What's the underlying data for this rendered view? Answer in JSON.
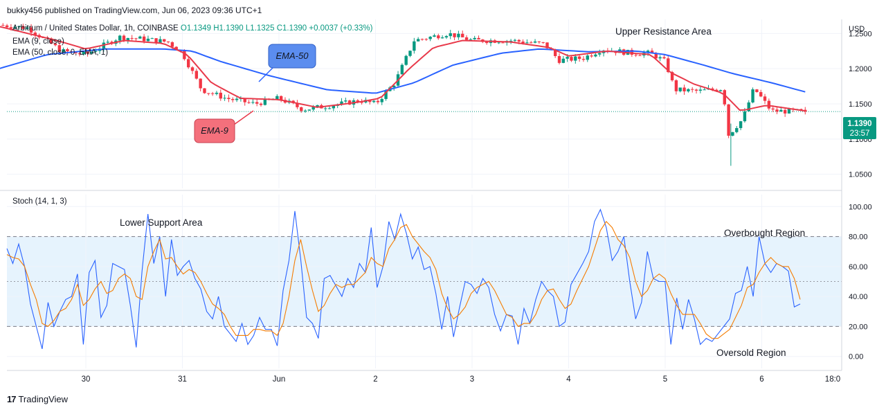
{
  "header": {
    "publisher": "bukky456 published on TradingView.com, Jun 06, 2023 09:36 UTC+1"
  },
  "legend": {
    "symbol": "Arbitrum / United States Dollar, 1h, COINBASE",
    "open": "O1.1349",
    "high": "H1.1390",
    "low": "L1.1325",
    "close": "C1.1390",
    "change": "+0.0037 (+0.33%)",
    "ema9": "EMA (9, close)",
    "ema50": "EMA (50, close, 0, EMA, 1)"
  },
  "stoch_title": "Stoch (14, 1, 3)",
  "annotations": {
    "upper_resistance": "Upper Resistance Area",
    "lower_support": "Lower Support Area",
    "overbought": "Overbought Region",
    "oversold": "Oversold Region",
    "ema50_callout": "EMA-50",
    "ema9_callout": "EMA-9"
  },
  "price_axis": {
    "currency": "USD",
    "ticks": [
      "1.2500",
      "1.2000",
      "1.1500",
      "1.1000",
      "1.0500"
    ],
    "last_price": "1.1390",
    "countdown": "23:57"
  },
  "stoch_axis": {
    "ticks": [
      "100.00",
      "80.00",
      "60.00",
      "40.00",
      "20.00",
      "0.00"
    ]
  },
  "time_axis": {
    "ticks": [
      "30",
      "31",
      "Jun",
      "2",
      "3",
      "4",
      "5",
      "6",
      "18:0"
    ]
  },
  "footer": {
    "brand": "TradingView"
  },
  "colors": {
    "up": "#089981",
    "down": "#f23645",
    "ema9": "#e8394a",
    "ema50": "#2962ff",
    "k_line": "#2962ff",
    "d_line": "#f57c00",
    "band": "#e3f2fd",
    "badge": "#089981",
    "callout_ema50": "#5b8def",
    "callout_ema9": "#f4707c"
  },
  "chart_data": [
    {
      "type": "candlestick",
      "title": "Arbitrum / United States Dollar, 1h, COINBASE",
      "ylabel": "USD",
      "ylim": [
        1.03,
        1.27
      ],
      "x": [
        "30",
        "31",
        "Jun",
        "2",
        "3",
        "4",
        "5",
        "6"
      ],
      "last_close": 1.139,
      "price_path": [
        {
          "t": -0.9,
          "p": 1.262
        },
        {
          "t": -0.6,
          "p": 1.258
        },
        {
          "t": -0.25,
          "p": 1.225
        },
        {
          "t": 0.0,
          "p": 1.22
        },
        {
          "t": 0.35,
          "p": 1.245
        },
        {
          "t": 0.6,
          "p": 1.242
        },
        {
          "t": 0.85,
          "p": 1.238
        },
        {
          "t": 1.0,
          "p": 1.222
        },
        {
          "t": 1.2,
          "p": 1.17
        },
        {
          "t": 1.45,
          "p": 1.158
        },
        {
          "t": 1.75,
          "p": 1.15
        },
        {
          "t": 2.0,
          "p": 1.158
        },
        {
          "t": 2.25,
          "p": 1.142
        },
        {
          "t": 2.55,
          "p": 1.148
        },
        {
          "t": 2.85,
          "p": 1.155
        },
        {
          "t": 3.0,
          "p": 1.15
        },
        {
          "t": 3.2,
          "p": 1.18
        },
        {
          "t": 3.4,
          "p": 1.24
        },
        {
          "t": 3.75,
          "p": 1.25
        },
        {
          "t": 4.0,
          "p": 1.24
        },
        {
          "t": 4.4,
          "p": 1.24
        },
        {
          "t": 4.75,
          "p": 1.235
        },
        {
          "t": 4.9,
          "p": 1.212
        },
        {
          "t": 5.15,
          "p": 1.215
        },
        {
          "t": 5.35,
          "p": 1.228
        },
        {
          "t": 5.65,
          "p": 1.222
        },
        {
          "t": 5.85,
          "p": 1.222
        },
        {
          "t": 6.0,
          "p": 1.21
        },
        {
          "t": 6.1,
          "p": 1.17
        },
        {
          "t": 6.35,
          "p": 1.168
        },
        {
          "t": 6.6,
          "p": 1.172
        },
        {
          "t": 6.65,
          "p": 1.105
        },
        {
          "t": 6.8,
          "p": 1.128
        },
        {
          "t": 6.92,
          "p": 1.172
        },
        {
          "t": 7.1,
          "p": 1.14
        },
        {
          "t": 7.45,
          "p": 1.139
        }
      ],
      "ema9_path": [
        {
          "t": -0.9,
          "p": 1.26
        },
        {
          "t": -0.3,
          "p": 1.24
        },
        {
          "t": 0.0,
          "p": 1.228
        },
        {
          "t": 0.4,
          "p": 1.24
        },
        {
          "t": 0.8,
          "p": 1.236
        },
        {
          "t": 1.05,
          "p": 1.22
        },
        {
          "t": 1.3,
          "p": 1.18
        },
        {
          "t": 1.6,
          "p": 1.158
        },
        {
          "t": 2.0,
          "p": 1.156
        },
        {
          "t": 2.4,
          "p": 1.145
        },
        {
          "t": 2.8,
          "p": 1.152
        },
        {
          "t": 3.05,
          "p": 1.158
        },
        {
          "t": 3.35,
          "p": 1.2
        },
        {
          "t": 3.6,
          "p": 1.23
        },
        {
          "t": 3.9,
          "p": 1.24
        },
        {
          "t": 4.4,
          "p": 1.238
        },
        {
          "t": 4.8,
          "p": 1.23
        },
        {
          "t": 5.0,
          "p": 1.218
        },
        {
          "t": 5.4,
          "p": 1.225
        },
        {
          "t": 5.85,
          "p": 1.22
        },
        {
          "t": 6.05,
          "p": 1.195
        },
        {
          "t": 6.3,
          "p": 1.178
        },
        {
          "t": 6.6,
          "p": 1.165
        },
        {
          "t": 6.78,
          "p": 1.14
        },
        {
          "t": 7.05,
          "p": 1.148
        },
        {
          "t": 7.45,
          "p": 1.14
        }
      ],
      "ema50_path": [
        {
          "t": -0.9,
          "p": 1.2
        },
        {
          "t": -0.4,
          "p": 1.22
        },
        {
          "t": 0.2,
          "p": 1.228
        },
        {
          "t": 0.8,
          "p": 1.228
        },
        {
          "t": 1.1,
          "p": 1.225
        },
        {
          "t": 1.4,
          "p": 1.21
        },
        {
          "t": 1.9,
          "p": 1.19
        },
        {
          "t": 2.5,
          "p": 1.17
        },
        {
          "t": 3.0,
          "p": 1.165
        },
        {
          "t": 3.4,
          "p": 1.18
        },
        {
          "t": 3.8,
          "p": 1.205
        },
        {
          "t": 4.3,
          "p": 1.222
        },
        {
          "t": 4.7,
          "p": 1.228
        },
        {
          "t": 5.2,
          "p": 1.224
        },
        {
          "t": 5.7,
          "p": 1.225
        },
        {
          "t": 6.0,
          "p": 1.22
        },
        {
          "t": 6.4,
          "p": 1.205
        },
        {
          "t": 6.7,
          "p": 1.193
        },
        {
          "t": 7.1,
          "p": 1.18
        },
        {
          "t": 7.45,
          "p": 1.167
        }
      ]
    },
    {
      "type": "line",
      "title": "Stoch (14, 1, 3)",
      "ylim": [
        -8,
        108
      ],
      "levels": {
        "overbought": 80,
        "middle": 50,
        "oversold": 20
      },
      "series": [
        {
          "name": "%K",
          "values": [
            72,
            62,
            75,
            60,
            35,
            20,
            5,
            36,
            20,
            30,
            38,
            40,
            55,
            8,
            56,
            64,
            26,
            34,
            62,
            60,
            58,
            34,
            6,
            57,
            95,
            62,
            80,
            40,
            78,
            54,
            60,
            64,
            52,
            45,
            30,
            25,
            40,
            20,
            15,
            10,
            22,
            8,
            14,
            26,
            18,
            18,
            7,
            44,
            64,
            97,
            65,
            26,
            22,
            12,
            52,
            54,
            47,
            40,
            52,
            46,
            62,
            56,
            86,
            46,
            60,
            90,
            78,
            95,
            82,
            65,
            73,
            58,
            60,
            42,
            18,
            40,
            13,
            32,
            50,
            48,
            42,
            52,
            46,
            28,
            17,
            28,
            27,
            8,
            32,
            22,
            38,
            50,
            44,
            40,
            20,
            23,
            48,
            55,
            62,
            70,
            90,
            98,
            86,
            64,
            70,
            80,
            50,
            25,
            36,
            70,
            52,
            50,
            50,
            8,
            39,
            18,
            38,
            25,
            8,
            12,
            10,
            15,
            20,
            25,
            42,
            44,
            60,
            40,
            80,
            62,
            56,
            62,
            60,
            57,
            33,
            35
          ]
        },
        {
          "name": "%D",
          "values": [
            68,
            66,
            65,
            60,
            48,
            38,
            22,
            20,
            24,
            30,
            32,
            38,
            48,
            34,
            38,
            45,
            50,
            42,
            44,
            52,
            55,
            52,
            40,
            38,
            60,
            70,
            78,
            65,
            66,
            60,
            55,
            58,
            56,
            50,
            42,
            35,
            32,
            28,
            20,
            14,
            14,
            14,
            18,
            18,
            17,
            17,
            14,
            22,
            40,
            64,
            78,
            60,
            44,
            30,
            34,
            42,
            48,
            46,
            48,
            48,
            52,
            56,
            66,
            62,
            60,
            72,
            78,
            86,
            88,
            80,
            75,
            70,
            66,
            58,
            42,
            32,
            25,
            28,
            33,
            42,
            46,
            48,
            50,
            44,
            36,
            28,
            26,
            20,
            22,
            22,
            28,
            38,
            44,
            45,
            38,
            32,
            35,
            44,
            52,
            60,
            72,
            84,
            90,
            86,
            78,
            74,
            66,
            50,
            40,
            44,
            52,
            55,
            52,
            42,
            34,
            28,
            28,
            28,
            22,
            15,
            12,
            12,
            15,
            18,
            26,
            34,
            46,
            48,
            56,
            62,
            66,
            62,
            60,
            60,
            52,
            38
          ]
        }
      ]
    }
  ]
}
